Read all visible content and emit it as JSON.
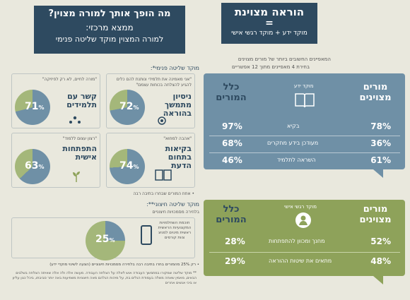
{
  "colors": {
    "navy": "#2e4a60",
    "blue": "#6f90a6",
    "olive": "#8ea25a",
    "green": "#a4b77a",
    "bg": "#e9e8dd"
  },
  "right_header": {
    "title": "הוראה מצוינת",
    "equals": "=",
    "subtitle": "מוקד ידע  +  מוקד רגשי אישי"
  },
  "intro": {
    "line1": "המאפיינים החשובים ביותר של מורים מצוינים",
    "line2": "בחירת 4 מאפיינים מתוך 12 אפשריים"
  },
  "knowledge": {
    "col_right": "מורים מצוינים",
    "col_left": "כלל המורים",
    "center_label": "מוקד ידע",
    "icon": "book-icon",
    "rows": [
      {
        "label": "בקיא",
        "excellent": "78%",
        "all": "97%"
      },
      {
        "label": "מעודכן בידע מחקרים",
        "excellent": "36%",
        "all": "68%"
      },
      {
        "label": "השראה לתלמיד",
        "excellent": "61%",
        "all": "46%"
      }
    ]
  },
  "emotional": {
    "col_right": "מורים מצוינים",
    "col_left": "כלל המורים",
    "center_label": "מוקד רגשי אישי",
    "icon": "person-icon",
    "rows": [
      {
        "label": "מחנך ומכוון להתפתחות",
        "excellent": "52%",
        "all": "28%"
      },
      {
        "label": "מתאים את שיטות ההוראה",
        "excellent": "48%",
        "all": "29%"
      }
    ]
  },
  "left_header": {
    "title": "מה הופך אותך למורה מצוין?",
    "line1": "ממצא מרכזי:",
    "line2": "למורה המצוין מוקד שליטה פנימי"
  },
  "internal": {
    "title": "מוקד שליטה פנימי*:",
    "cards": [
      {
        "quote": "\"אני מאמינה את תלמידי ונותנת להם כלים להגיע להצלחה בכוחות עצמם\"",
        "title": "ניסיון מתמשך בהוראה",
        "pct": "72",
        "icon": "gear-icon"
      },
      {
        "quote": "\"מורה לחיים, לא רק לפיזיקה\"",
        "title": "קשר עם תלמידים",
        "pct": "71",
        "icon": "people-icon"
      },
      {
        "quote": "\"אהבה למחוא\"",
        "title": "בקיאות בתחום הדעת",
        "pct": "74",
        "icon": "book-open-icon"
      },
      {
        "quote": "\"רצון עצום ללמוד\"",
        "title": "התפתחות אישית",
        "pct": "63",
        "icon": "plant-icon"
      }
    ],
    "footnote": "• אחוז המורים שבחרו בתיבה רבה"
  },
  "external": {
    "title": "מוקד שליטה חיצוני**:",
    "subtitle": "בלחירה מסמכויות חיצוניים",
    "pct": "25",
    "desc": "חוכמת השחלמויות המקצועיות הראשית ראשית מינוים למניצ צוות קורסים",
    "icon": "phone-icon",
    "note": "• רק 25% מהמורים בחרו בתיבה רבה בלחירה מסמכויות חיצוניים (הצעה לשינוי מוקדי ידע)",
    "footnote": "** מוקד שליטה שמקורו במתמשך העבודה אוש לאלה על הצלחה העבודה. מעשה אלה ולה אלה שאיתה הצלחה בשלבים הבאים, מאמין שאחה משלה בעמודת הגלים בת, על מיהות הגלהם מאה חיצוניות משפיעות באה יותר סביבתו, ביכל כגון עליון או ביכי אנשים אחרים"
  }
}
